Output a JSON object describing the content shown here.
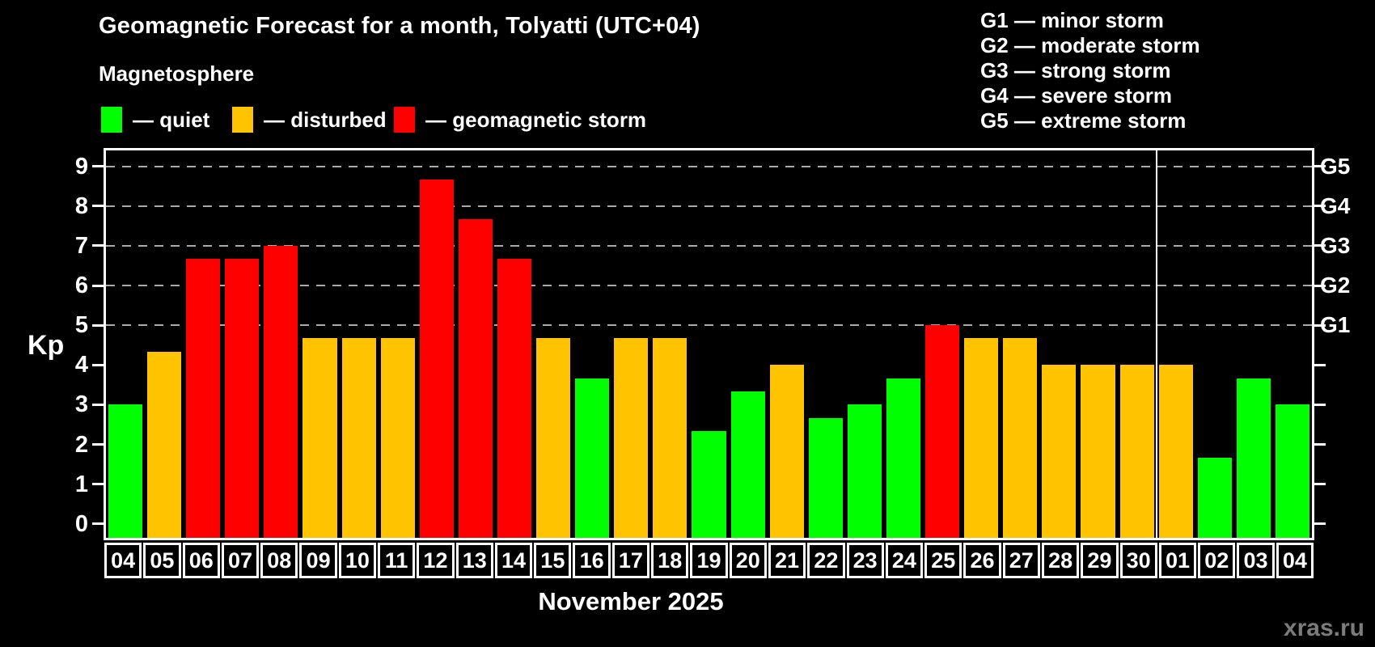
{
  "title": "Geomagnetic Forecast for a month, Tolyatti (UTC+04)",
  "subtitle": "Magnetosphere",
  "legend": {
    "items": [
      {
        "status": "quiet",
        "label": "— quiet"
      },
      {
        "status": "disturbed",
        "label": "— disturbed"
      },
      {
        "status": "storm",
        "label": "— geomagnetic storm"
      }
    ]
  },
  "g_legend": [
    "G1 — minor storm",
    "G2 — moderate storm",
    "G3 — strong storm",
    "G4 — severe storm",
    "G5 — extreme storm"
  ],
  "axis": {
    "kp_label": "Kp",
    "month_label": "November 2025"
  },
  "watermark": "xras.ru",
  "colors": {
    "quiet": "#00ff00",
    "disturbed": "#ffc300",
    "storm": "#ff0000",
    "grid": "#aaaaaa",
    "axis": "#ffffff",
    "background": "#000000",
    "watermark": "#7c7c7c"
  },
  "chart_data": {
    "type": "bar",
    "title": "Geomagnetic Forecast for a month, Tolyatti (UTC+04)",
    "ylabel": "Kp",
    "xlabel": "November 2025",
    "ylim": [
      0,
      9
    ],
    "yticks": [
      0,
      1,
      2,
      3,
      4,
      5,
      6,
      7,
      8,
      9
    ],
    "gridlines_at": [
      5,
      6,
      7,
      8,
      9
    ],
    "grid": "dashed, levels 5-9 only",
    "legend_position": "top-left",
    "g_scale": [
      {
        "kp": 5,
        "label": "G1"
      },
      {
        "kp": 6,
        "label": "G2"
      },
      {
        "kp": 7,
        "label": "G3"
      },
      {
        "kp": 8,
        "label": "G4"
      },
      {
        "kp": 9,
        "label": "G5"
      }
    ],
    "categories": [
      "04",
      "05",
      "06",
      "07",
      "08",
      "09",
      "10",
      "11",
      "12",
      "13",
      "14",
      "15",
      "16",
      "17",
      "18",
      "19",
      "20",
      "21",
      "22",
      "23",
      "24",
      "25",
      "26",
      "27",
      "28",
      "29",
      "30",
      "01",
      "02",
      "03",
      "04"
    ],
    "values": [
      3.0,
      4.33,
      6.67,
      6.67,
      7.0,
      4.67,
      4.67,
      4.67,
      8.67,
      7.67,
      6.67,
      4.67,
      3.67,
      4.67,
      4.67,
      2.33,
      3.33,
      4.0,
      2.67,
      3.0,
      3.67,
      5.0,
      4.67,
      4.67,
      4.0,
      4.0,
      4.0,
      4.0,
      1.67,
      3.67,
      3.0
    ],
    "statuses": [
      "quiet",
      "disturbed",
      "storm",
      "storm",
      "storm",
      "disturbed",
      "disturbed",
      "disturbed",
      "storm",
      "storm",
      "storm",
      "disturbed",
      "quiet",
      "disturbed",
      "disturbed",
      "quiet",
      "quiet",
      "disturbed",
      "quiet",
      "quiet",
      "quiet",
      "storm",
      "disturbed",
      "disturbed",
      "disturbed",
      "disturbed",
      "disturbed",
      "disturbed",
      "quiet",
      "quiet",
      "quiet"
    ],
    "month_separator_after_index": 26
  }
}
